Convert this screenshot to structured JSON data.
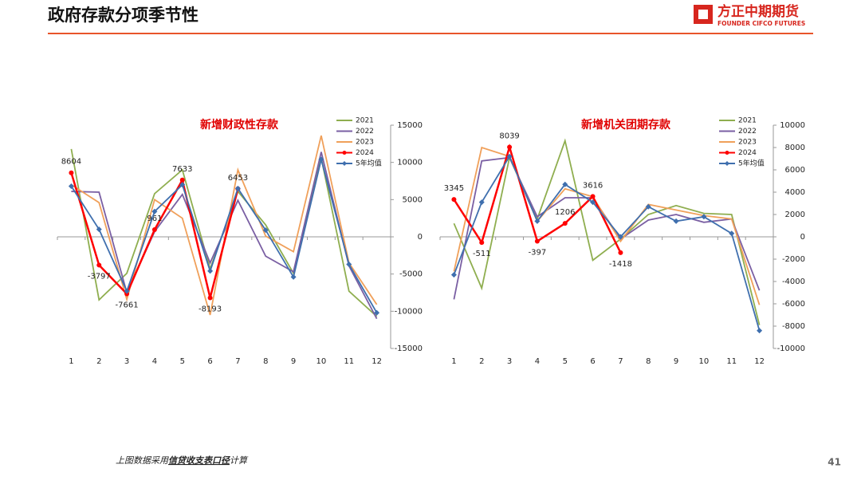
{
  "header": {
    "title": "政府存款分项季节性",
    "logo_cn": "方正中期期货",
    "logo_en": "FOUNDER CIFCO FUTURES"
  },
  "chart_data": [
    {
      "type": "line",
      "title": "新增财政性存款",
      "categories": [
        "1",
        "2",
        "3",
        "4",
        "5",
        "6",
        "7",
        "8",
        "9",
        "10",
        "11",
        "12"
      ],
      "ylim": [
        -15000,
        15000
      ],
      "yticks": [
        -15000,
        -10000,
        -5000,
        0,
        5000,
        10000,
        15000
      ],
      "series": [
        {
          "name": "2021",
          "color": "#8fae4f",
          "values": [
            11800,
            -8470,
            -4900,
            5800,
            9000,
            -4300,
            6100,
            1600,
            -4900,
            10600,
            -7300,
            -10700
          ]
        },
        {
          "name": "2022",
          "color": "#7a5fa3",
          "values": [
            6100,
            6000,
            -7500,
            700,
            5700,
            -3500,
            4900,
            -2600,
            -4700,
            11400,
            -3900,
            -11000
          ]
        },
        {
          "name": "2023",
          "color": "#f0a05a",
          "values": [
            7000,
            4600,
            -8400,
            5000,
            2500,
            -10500,
            9000,
            100,
            -2000,
            13600,
            -3500,
            -9100
          ]
        },
        {
          "name": "2024",
          "color": "#ff0000",
          "marker": "circle",
          "data_labels": true,
          "values": [
            8604,
            -3797,
            -7661,
            961,
            7633,
            -8193,
            6453,
            null,
            null,
            null,
            null,
            null
          ]
        },
        {
          "name": "5年均值",
          "color": "#3f6fae",
          "marker": "diamond",
          "values": [
            6800,
            1000,
            -7300,
            3400,
            7000,
            -4600,
            6500,
            900,
            -5400,
            10400,
            -3700,
            -10200
          ]
        }
      ]
    },
    {
      "type": "line",
      "title": "新增机关团期存款",
      "categories": [
        "1",
        "2",
        "3",
        "4",
        "5",
        "6",
        "7",
        "8",
        "9",
        "10",
        "11",
        "12"
      ],
      "ylim": [
        -10000,
        10000
      ],
      "yticks": [
        -10000,
        -8000,
        -6000,
        -4000,
        -2000,
        0,
        2000,
        4000,
        6000,
        8000,
        10000
      ],
      "series": [
        {
          "name": "2021",
          "color": "#8fae4f",
          "values": [
            1200,
            -4600,
            7100,
            1600,
            8600,
            -2100,
            -200,
            2000,
            2800,
            2100,
            2000,
            -7900
          ]
        },
        {
          "name": "2022",
          "color": "#7a5fa3",
          "values": [
            -5600,
            6800,
            7100,
            1800,
            3500,
            3500,
            -200,
            1500,
            2000,
            1300,
            1600,
            -4800
          ]
        },
        {
          "name": "2023",
          "color": "#f0a05a",
          "values": [
            -3100,
            8000,
            7200,
            1400,
            4300,
            3600,
            -400,
            2900,
            2400,
            1900,
            1600,
            -6100
          ]
        },
        {
          "name": "2024",
          "color": "#ff0000",
          "marker": "circle",
          "data_labels": true,
          "values": [
            3345,
            -511,
            8039,
            -397,
            1206,
            3616,
            -1418,
            null,
            null,
            null,
            null,
            null
          ]
        },
        {
          "name": "5年均值",
          "color": "#3f6fae",
          "marker": "diamond",
          "values": [
            -3400,
            3100,
            7200,
            1400,
            4700,
            3100,
            0,
            2700,
            1400,
            1800,
            300,
            -8400
          ]
        }
      ]
    }
  ],
  "footer": {
    "note_pre": "上图数据采用",
    "note_em": "信贷收支表口径",
    "note_post": "计算",
    "page": "41"
  }
}
